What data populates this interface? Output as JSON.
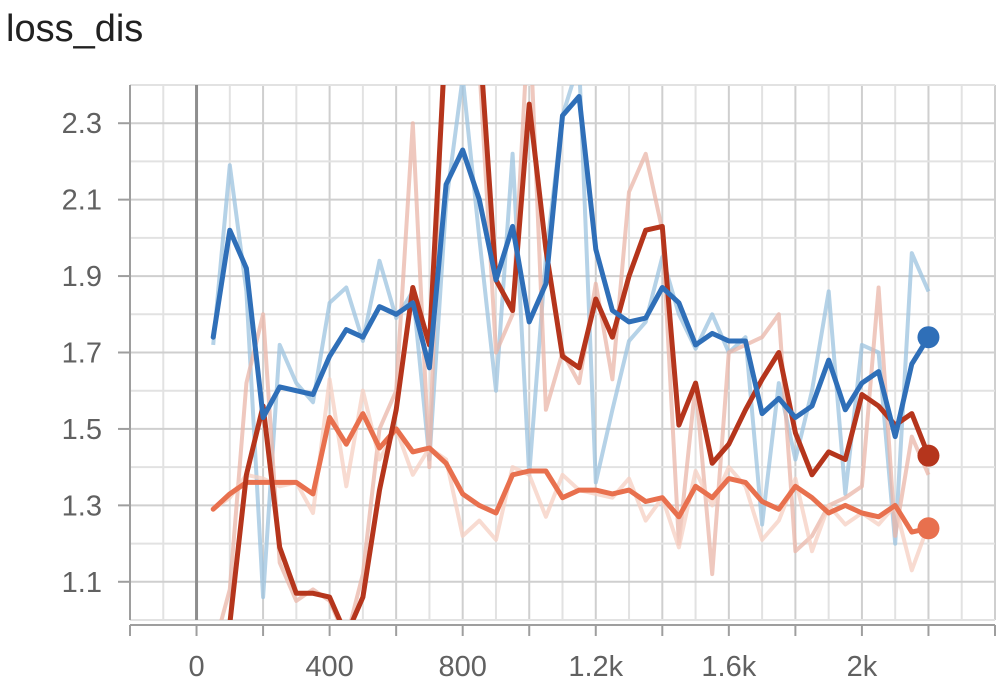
{
  "title": "loss_dis",
  "chart_data": {
    "type": "line",
    "title": "loss_dis",
    "xlabel": "",
    "ylabel": "",
    "xlim": [
      -200,
      2400
    ],
    "ylim": [
      1.0,
      2.4
    ],
    "x_ticks": [
      0,
      400,
      800,
      1200,
      1600,
      2000
    ],
    "x_tick_labels": [
      "0",
      "400",
      "800",
      "1.2k",
      "1.6k",
      "2k"
    ],
    "y_ticks": [
      1.1,
      1.3,
      1.5,
      1.7,
      1.9,
      2.1,
      2.3
    ],
    "y_tick_labels": [
      "1.1",
      "1.3",
      "1.5",
      "1.7",
      "1.9",
      "2.1",
      "2.3"
    ],
    "grid": true,
    "legend": "none",
    "series": [
      {
        "color": "#2f6fb8",
        "raw_color": "#9cc3df",
        "x": [
          50,
          100,
          150,
          200,
          250,
          300,
          350,
          400,
          450,
          500,
          550,
          600,
          650,
          700,
          750,
          800,
          850,
          900,
          950,
          1000,
          1050,
          1100,
          1150,
          1200,
          1250,
          1300,
          1350,
          1400,
          1450,
          1500,
          1550,
          1600,
          1650,
          1700,
          1750,
          1800,
          1850,
          1900,
          1950,
          2000,
          2050,
          2100,
          2150,
          2200
        ],
        "raw": [
          1.72,
          2.19,
          1.86,
          1.06,
          1.72,
          1.62,
          1.57,
          1.83,
          1.87,
          1.73,
          1.94,
          1.79,
          1.86,
          1.42,
          2.09,
          2.42,
          2.0,
          1.6,
          2.22,
          1.38,
          1.95,
          2.32,
          2.46,
          1.36,
          1.55,
          1.73,
          1.78,
          1.95,
          1.8,
          1.71,
          1.8,
          1.7,
          1.74,
          1.25,
          1.62,
          1.42,
          1.6,
          1.86,
          1.33,
          1.72,
          1.7,
          1.2,
          1.96,
          1.86
        ],
        "smoothed": [
          1.74,
          2.02,
          1.92,
          1.53,
          1.61,
          1.6,
          1.59,
          1.69,
          1.76,
          1.74,
          1.82,
          1.8,
          1.83,
          1.66,
          2.14,
          2.23,
          2.1,
          1.89,
          2.03,
          1.78,
          1.88,
          2.32,
          2.37,
          1.97,
          1.81,
          1.78,
          1.79,
          1.87,
          1.83,
          1.72,
          1.75,
          1.73,
          1.73,
          1.54,
          1.58,
          1.53,
          1.56,
          1.68,
          1.55,
          1.62,
          1.65,
          1.48,
          1.67,
          1.74
        ]
      },
      {
        "color": "#b5351c",
        "raw_color": "#e9b5a8",
        "x": [
          50,
          100,
          150,
          200,
          250,
          300,
          350,
          400,
          450,
          500,
          550,
          600,
          650,
          700,
          750,
          800,
          850,
          900,
          950,
          1000,
          1050,
          1100,
          1150,
          1200,
          1250,
          1300,
          1350,
          1400,
          1450,
          1500,
          1550,
          1600,
          1650,
          1700,
          1750,
          1800,
          1850,
          1900,
          1950,
          2000,
          2050,
          2100,
          2150,
          2200
        ],
        "raw": [
          0.92,
          1.08,
          1.62,
          1.8,
          1.15,
          1.05,
          1.08,
          1.05,
          0.95,
          1.12,
          1.5,
          1.6,
          2.3,
          1.4,
          2.7,
          2.6,
          2.45,
          1.7,
          1.8,
          2.6,
          1.55,
          1.7,
          1.62,
          1.88,
          1.63,
          2.12,
          2.22,
          2.02,
          1.2,
          1.62,
          1.12,
          1.7,
          1.72,
          1.74,
          1.8,
          1.18,
          1.22,
          1.3,
          1.32,
          1.35,
          1.87,
          1.22,
          1.48,
          1.38
        ],
        "smoothed": [
          0.85,
          0.99,
          1.38,
          1.56,
          1.19,
          1.07,
          1.07,
          1.06,
          0.96,
          1.06,
          1.34,
          1.55,
          1.87,
          1.72,
          2.55,
          2.6,
          2.53,
          1.89,
          1.81,
          2.35,
          1.97,
          1.69,
          1.66,
          1.84,
          1.74,
          1.9,
          2.02,
          2.03,
          1.51,
          1.62,
          1.41,
          1.46,
          1.55,
          1.63,
          1.7,
          1.49,
          1.38,
          1.44,
          1.42,
          1.59,
          1.56,
          1.51,
          1.54,
          1.43
        ]
      },
      {
        "color": "#e8704e",
        "raw_color": "#f6cfc2",
        "x": [
          50,
          100,
          150,
          200,
          250,
          300,
          350,
          400,
          450,
          500,
          550,
          600,
          650,
          700,
          750,
          800,
          850,
          900,
          950,
          1000,
          1050,
          1100,
          1150,
          1200,
          1250,
          1300,
          1350,
          1400,
          1450,
          1500,
          1550,
          1600,
          1650,
          1700,
          1750,
          1800,
          1850,
          1900,
          1950,
          2000,
          2050,
          2100,
          2150,
          2200
        ],
        "raw": [
          1.29,
          1.32,
          1.38,
          1.37,
          1.35,
          1.36,
          1.28,
          1.63,
          1.35,
          1.6,
          1.42,
          1.5,
          1.38,
          1.45,
          1.42,
          1.22,
          1.26,
          1.21,
          1.4,
          1.38,
          1.27,
          1.38,
          1.34,
          1.33,
          1.32,
          1.37,
          1.26,
          1.32,
          1.19,
          1.39,
          1.3,
          1.4,
          1.35,
          1.21,
          1.26,
          1.37,
          1.18,
          1.3,
          1.25,
          1.28,
          1.25,
          1.3,
          1.13,
          1.25
        ],
        "smoothed": [
          1.29,
          1.33,
          1.36,
          1.36,
          1.36,
          1.36,
          1.33,
          1.53,
          1.46,
          1.54,
          1.45,
          1.5,
          1.44,
          1.45,
          1.41,
          1.33,
          1.3,
          1.28,
          1.38,
          1.39,
          1.39,
          1.32,
          1.34,
          1.34,
          1.33,
          1.34,
          1.31,
          1.32,
          1.27,
          1.35,
          1.32,
          1.37,
          1.36,
          1.31,
          1.29,
          1.35,
          1.32,
          1.28,
          1.3,
          1.28,
          1.27,
          1.3,
          1.23,
          1.24
        ]
      }
    ]
  }
}
